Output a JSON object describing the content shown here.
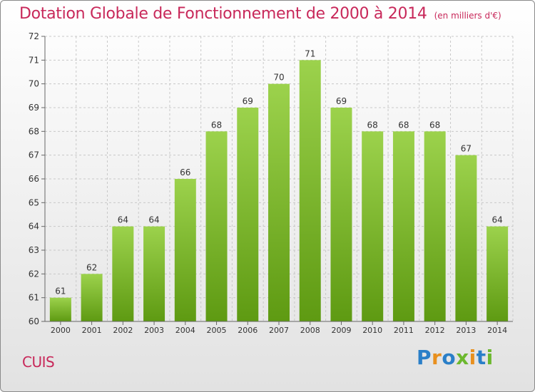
{
  "header": {
    "title": "Dotation Globale de Fonctionnement de 2000 à 2014",
    "subtitle": "(en milliers d'€)"
  },
  "footer": {
    "commune": "CUIS",
    "brand": "Proxiti"
  },
  "colors": {
    "title": "#c8285a",
    "bar_top": "#9cd24c",
    "bar_bottom": "#5e9a12",
    "grid": "#c8c8c8"
  },
  "chart_data": {
    "type": "bar",
    "title": "Dotation Globale de Fonctionnement de 2000 à 2014",
    "subtitle": "(en milliers d'€)",
    "categories": [
      "2000",
      "2001",
      "2002",
      "2003",
      "2004",
      "2005",
      "2006",
      "2007",
      "2008",
      "2009",
      "2010",
      "2011",
      "2012",
      "2013",
      "2014"
    ],
    "values": [
      61,
      62,
      64,
      64,
      66,
      68,
      69,
      70,
      71,
      69,
      68,
      68,
      68,
      67,
      64
    ],
    "ylim": [
      60,
      72
    ],
    "yticks": [
      60,
      61,
      62,
      63,
      64,
      65,
      66,
      67,
      68,
      69,
      70,
      71,
      72
    ],
    "xlabel": "",
    "ylabel": "",
    "grid": true,
    "data_labels": true
  }
}
